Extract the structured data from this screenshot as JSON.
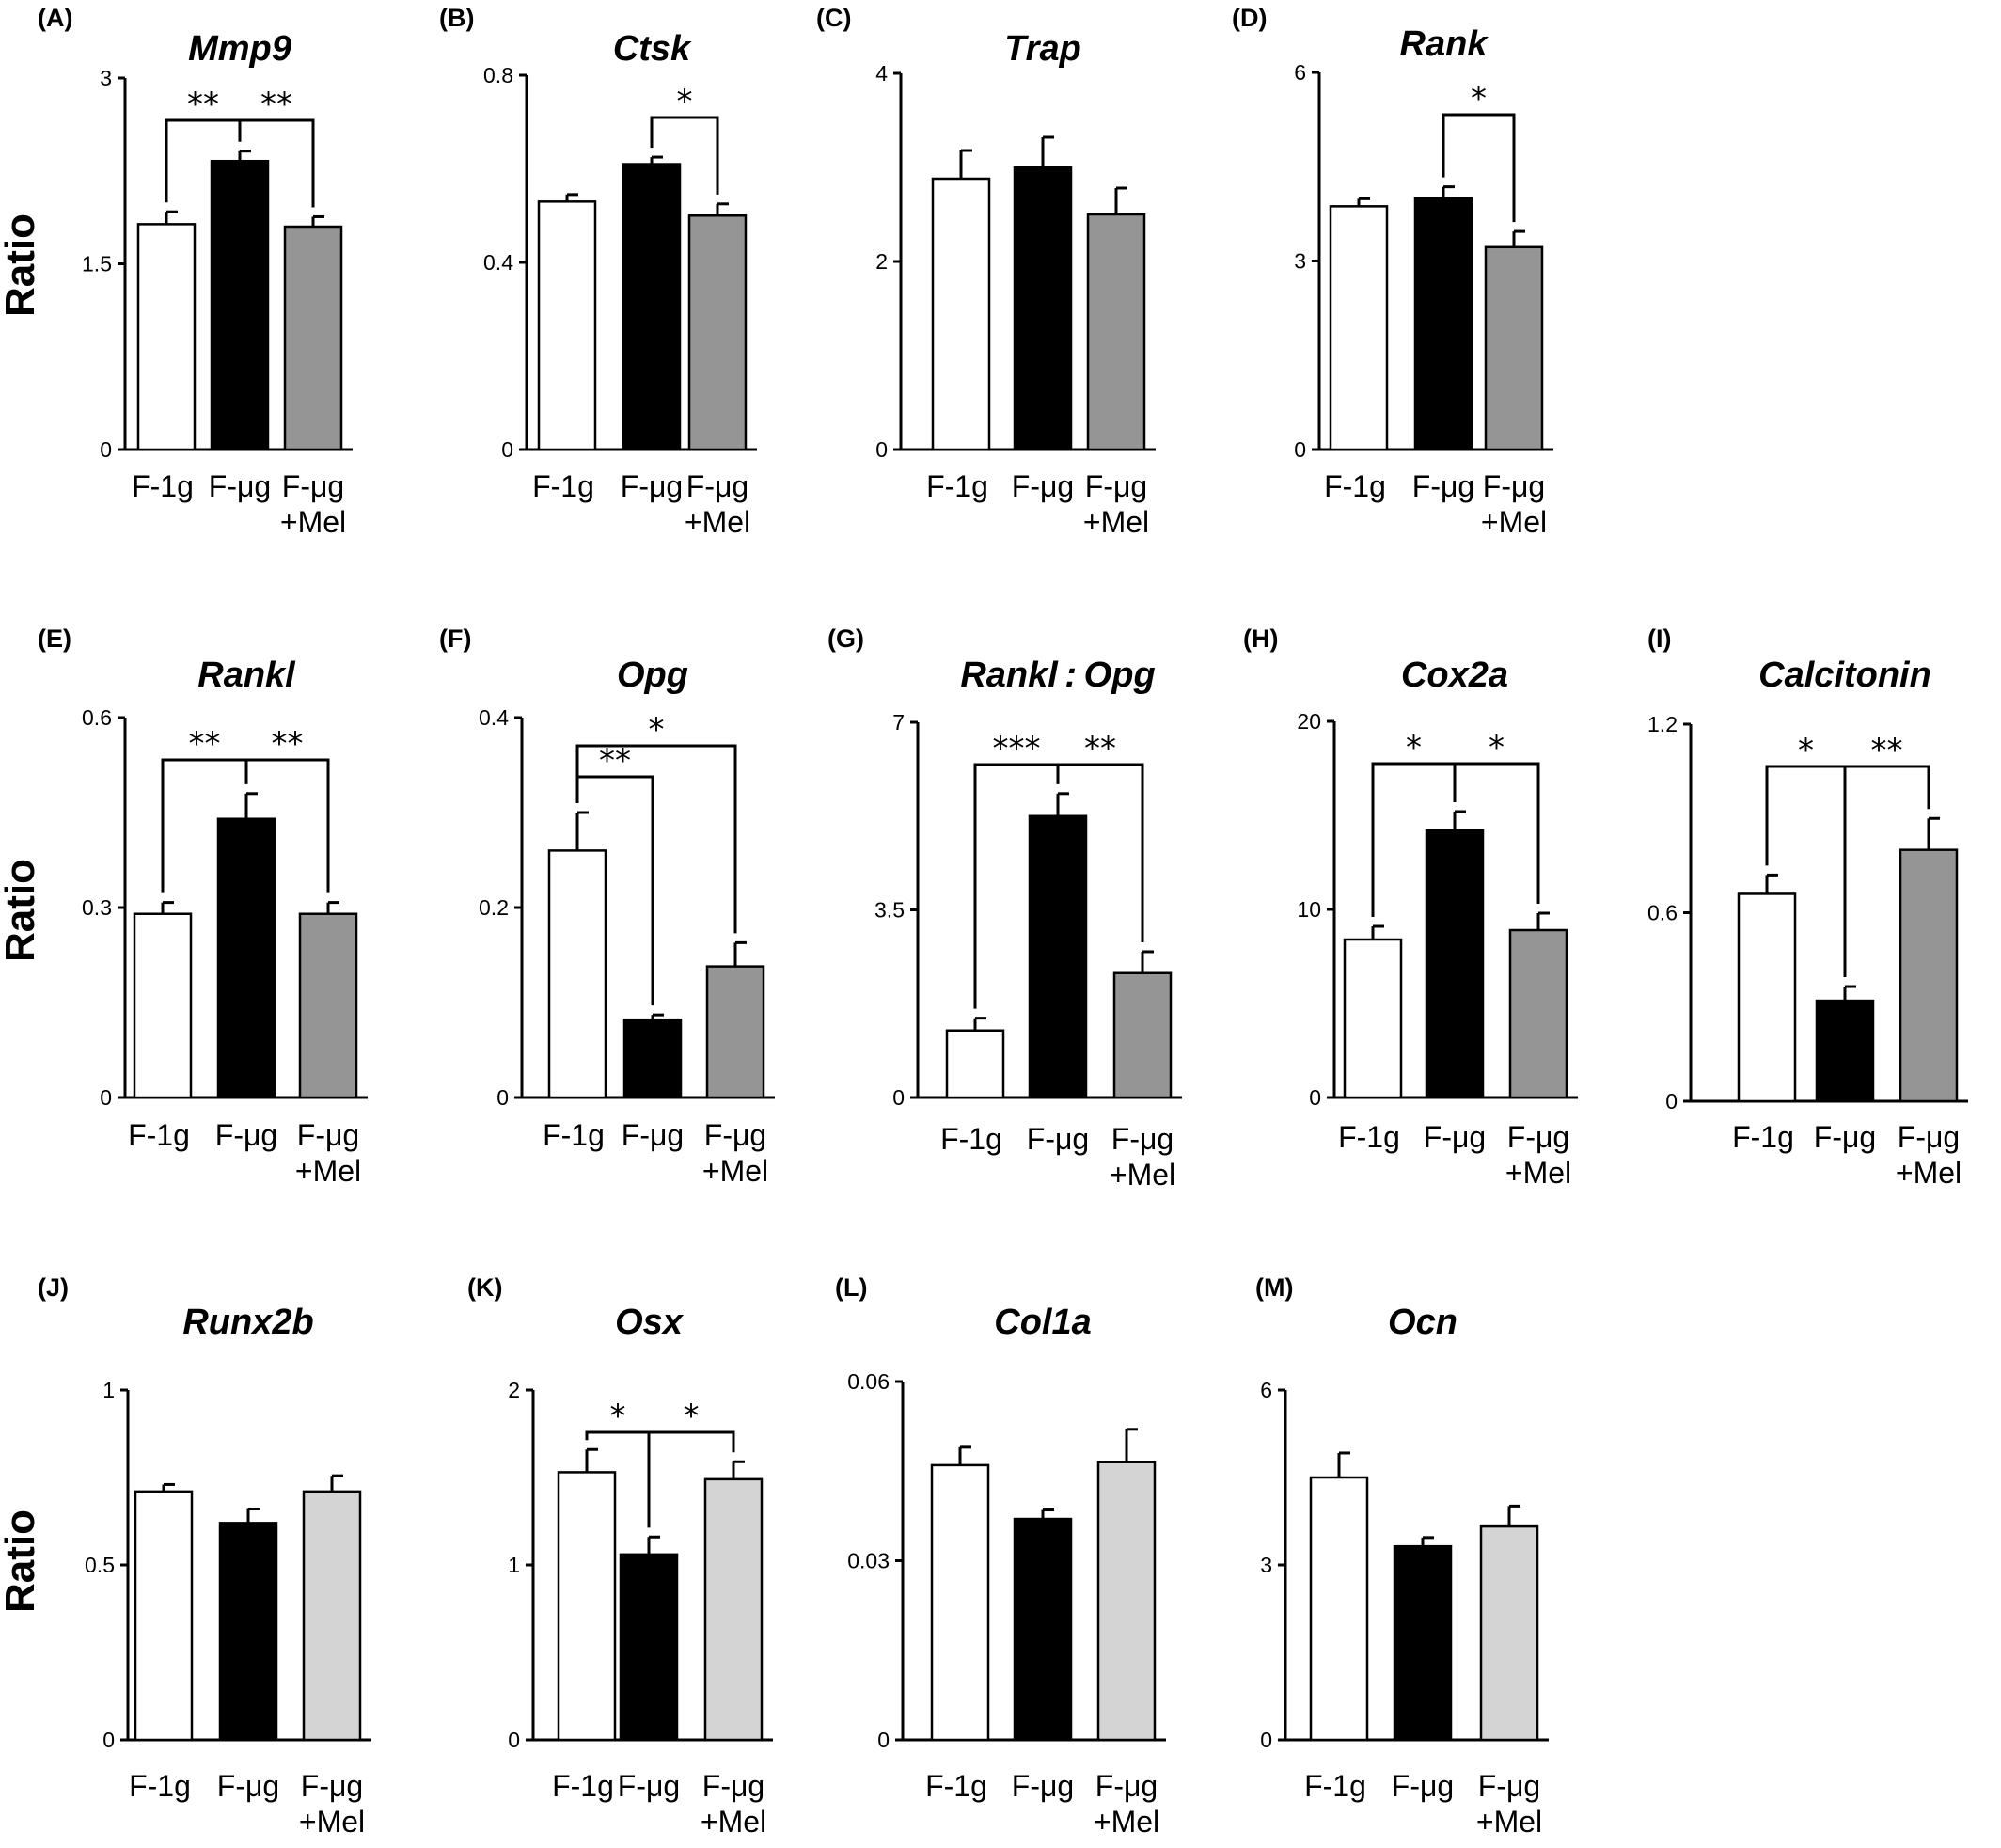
{
  "figure": {
    "ylabel": "Ratio",
    "group_colors": {
      "F-1g": "#ffffff",
      "F-μg": "#000000",
      "F-μg+Mel_rows1_2": "#959595",
      "F-μg+Mel_row3": "#d4d4d4"
    }
  },
  "chart_data": [
    {
      "panel": "(A)",
      "title": "Mmp9",
      "type": "bar",
      "categories": [
        [
          "F-1g"
        ],
        [
          "F-μg"
        ],
        [
          "F-μg",
          "+Mel"
        ]
      ],
      "ylim": [
        0,
        3
      ],
      "yticks": [
        "0",
        "1.5",
        "3"
      ],
      "ytick_values": [
        0,
        1.5,
        3
      ],
      "values": [
        1.82,
        2.33,
        1.8
      ],
      "errors": [
        0.1,
        0.08,
        0.08
      ],
      "significance": [
        {
          "from": 0,
          "to": 1,
          "label": "**"
        },
        {
          "from": 1,
          "to": 2,
          "label": "**"
        }
      ]
    },
    {
      "panel": "(B)",
      "title": "Ctsk",
      "type": "bar",
      "categories": [
        [
          "F-1g"
        ],
        [
          "F-μg"
        ],
        [
          "F-μg",
          "+Mel"
        ]
      ],
      "ylim": [
        0,
        0.8
      ],
      "yticks": [
        "0",
        "0.4",
        "0.8"
      ],
      "ytick_values": [
        0,
        0.4,
        0.8
      ],
      "values": [
        0.53,
        0.61,
        0.5
      ],
      "errors": [
        0.015,
        0.015,
        0.025
      ],
      "significance": [
        {
          "from": 1,
          "to": 2,
          "label": "*"
        }
      ]
    },
    {
      "panel": "(C)",
      "title": "Trap",
      "type": "bar",
      "categories": [
        [
          "F-1g"
        ],
        [
          "F-μg"
        ],
        [
          "F-μg",
          "+Mel"
        ]
      ],
      "ylim": [
        0,
        4
      ],
      "yticks": [
        "0",
        "2",
        "4"
      ],
      "ytick_values": [
        0,
        2,
        4
      ],
      "values": [
        2.88,
        3.0,
        2.5
      ],
      "errors": [
        0.3,
        0.32,
        0.28
      ],
      "significance": []
    },
    {
      "panel": "(D)",
      "title": "Rank",
      "type": "bar",
      "categories": [
        [
          "F-1g"
        ],
        [
          "F-μg"
        ],
        [
          "F-μg",
          "+Mel"
        ]
      ],
      "ylim": [
        0,
        6
      ],
      "yticks": [
        "0",
        "3",
        "6"
      ],
      "ytick_values": [
        0,
        3,
        6
      ],
      "values": [
        3.87,
        4.0,
        3.22
      ],
      "errors": [
        0.12,
        0.18,
        0.25
      ],
      "significance": [
        {
          "from": 1,
          "to": 2,
          "label": "*"
        }
      ]
    },
    {
      "panel": "(E)",
      "title": "Rankl",
      "type": "bar",
      "categories": [
        [
          "F-1g"
        ],
        [
          "F-μg"
        ],
        [
          "F-μg",
          "+Mel"
        ]
      ],
      "ylim": [
        0,
        0.6
      ],
      "yticks": [
        "0",
        "0.3",
        "0.6"
      ],
      "ytick_values": [
        0,
        0.3,
        0.6
      ],
      "values": [
        0.29,
        0.44,
        0.29
      ],
      "errors": [
        0.018,
        0.04,
        0.018
      ],
      "significance": [
        {
          "from": 0,
          "to": 1,
          "label": "**"
        },
        {
          "from": 1,
          "to": 2,
          "label": "**"
        }
      ]
    },
    {
      "panel": "(F)",
      "title": "Opg",
      "type": "bar",
      "categories": [
        [
          "F-1g"
        ],
        [
          "F-μg"
        ],
        [
          "F-μg",
          "+Mel"
        ]
      ],
      "ylim": [
        0,
        0.4
      ],
      "yticks": [
        "0",
        "0.2",
        "0.4"
      ],
      "ytick_values": [
        0,
        0.2,
        0.4
      ],
      "values": [
        0.26,
        0.082,
        0.138
      ],
      "errors": [
        0.04,
        0.005,
        0.025
      ],
      "significance": [
        {
          "from": 0,
          "to": 1,
          "label": "**"
        },
        {
          "from": 0,
          "to": 2,
          "label": "*"
        }
      ]
    },
    {
      "panel": "(G)",
      "title": "Rankl : Opg",
      "type": "bar",
      "categories": [
        [
          "F-1g"
        ],
        [
          "F-μg"
        ],
        [
          "F-μg",
          "+Mel"
        ]
      ],
      "ylim": [
        0,
        7
      ],
      "yticks": [
        "0",
        "3.5",
        "7"
      ],
      "ytick_values": [
        0,
        3.5,
        7
      ],
      "values": [
        1.25,
        5.25,
        2.32
      ],
      "errors": [
        0.23,
        0.42,
        0.4
      ],
      "significance": [
        {
          "from": 0,
          "to": 1,
          "label": "***"
        },
        {
          "from": 1,
          "to": 2,
          "label": "**"
        }
      ]
    },
    {
      "panel": "(H)",
      "title": "Cox2a",
      "type": "bar",
      "categories": [
        [
          "F-1g"
        ],
        [
          "F-μg"
        ],
        [
          "F-μg",
          "+Mel"
        ]
      ],
      "ylim": [
        0,
        20
      ],
      "yticks": [
        "0",
        "10",
        "20"
      ],
      "ytick_values": [
        0,
        10,
        20
      ],
      "values": [
        8.4,
        14.2,
        8.9
      ],
      "errors": [
        0.7,
        1.0,
        0.9
      ],
      "significance": [
        {
          "from": 0,
          "to": 1,
          "label": "*"
        },
        {
          "from": 1,
          "to": 2,
          "label": "*"
        }
      ]
    },
    {
      "panel": "(I)",
      "title": "Calcitonin",
      "type": "bar",
      "categories": [
        [
          "F-1g"
        ],
        [
          "F-μg"
        ],
        [
          "F-μg",
          "+Mel"
        ]
      ],
      "ylim": [
        0,
        1.2
      ],
      "yticks": [
        "0",
        "0.6",
        "1.2"
      ],
      "ytick_values": [
        0,
        0.6,
        1.2
      ],
      "values": [
        0.66,
        0.32,
        0.8
      ],
      "errors": [
        0.06,
        0.045,
        0.1
      ],
      "significance": [
        {
          "from": 0,
          "to": 1,
          "label": "*"
        },
        {
          "from": 1,
          "to": 2,
          "label": "**"
        }
      ]
    },
    {
      "panel": "(J)",
      "title": "Runx2b",
      "type": "bar",
      "categories": [
        [
          "F-1g"
        ],
        [
          "F-μg"
        ],
        [
          "F-μg",
          "+Mel"
        ]
      ],
      "ylim": [
        0,
        1
      ],
      "yticks": [
        "0",
        "0.5",
        "1"
      ],
      "ytick_values": [
        0,
        0.5,
        1
      ],
      "values": [
        0.71,
        0.62,
        0.71
      ],
      "errors": [
        0.02,
        0.04,
        0.045
      ],
      "significance": []
    },
    {
      "panel": "(K)",
      "title": "Osx",
      "type": "bar",
      "categories": [
        [
          "F-1g"
        ],
        [
          "F-μg"
        ],
        [
          "F-μg",
          "+Mel"
        ]
      ],
      "ylim": [
        0,
        2
      ],
      "yticks": [
        "0",
        "1",
        "2"
      ],
      "ytick_values": [
        0,
        1,
        2
      ],
      "values": [
        1.53,
        1.06,
        1.49
      ],
      "errors": [
        0.13,
        0.1,
        0.1
      ],
      "significance": [
        {
          "from": 0,
          "to": 1,
          "label": "*"
        },
        {
          "from": 1,
          "to": 2,
          "label": "*"
        }
      ]
    },
    {
      "panel": "(L)",
      "title": "Col1a",
      "type": "bar",
      "categories": [
        [
          "F-1g"
        ],
        [
          "F-μg"
        ],
        [
          "F-μg",
          "+Mel"
        ]
      ],
      "ylim": [
        0,
        0.06
      ],
      "yticks": [
        "0",
        "0.03",
        "0.06"
      ],
      "ytick_values": [
        0,
        0.03,
        0.06
      ],
      "values": [
        0.046,
        0.037,
        0.0465
      ],
      "errors": [
        0.003,
        0.0015,
        0.0055
      ],
      "significance": []
    },
    {
      "panel": "(M)",
      "title": "Ocn",
      "type": "bar",
      "categories": [
        [
          "F-1g"
        ],
        [
          "F-μg"
        ],
        [
          "F-μg",
          "+Mel"
        ]
      ],
      "ylim": [
        0,
        6
      ],
      "yticks": [
        "0",
        "3",
        "6"
      ],
      "ytick_values": [
        0,
        3,
        6
      ],
      "values": [
        4.5,
        3.32,
        3.66
      ],
      "errors": [
        0.42,
        0.15,
        0.35
      ],
      "significance": []
    }
  ]
}
